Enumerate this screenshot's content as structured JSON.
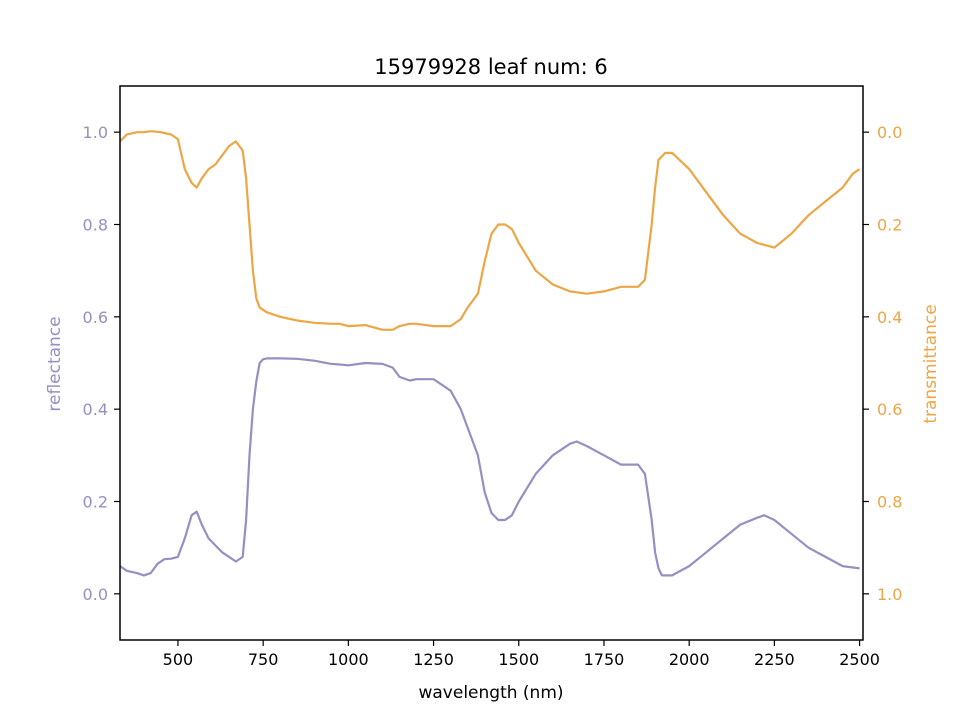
{
  "chart_data": {
    "type": "line",
    "title": "15979928 leaf num: 6",
    "xlabel": "wavelength (nm)",
    "ylabel_left": "reflectance",
    "ylabel_right": "transmittance",
    "xlim": [
      330,
      2510
    ],
    "ylim_left": [
      -0.1,
      1.1
    ],
    "ylim_right": [
      1.1,
      -0.1
    ],
    "right_axis_inverted": true,
    "xticks": [
      500,
      750,
      1000,
      1250,
      1500,
      1750,
      2000,
      2250,
      2500
    ],
    "xtick_labels": [
      "500",
      "750",
      "1000",
      "1250",
      "1500",
      "1750",
      "2000",
      "2250",
      "2500"
    ],
    "yticks_left": [
      0.0,
      0.2,
      0.4,
      0.6,
      0.8,
      1.0
    ],
    "ytick_labels_left": [
      "0.0",
      "0.2",
      "0.4",
      "0.6",
      "0.8",
      "1.0"
    ],
    "yticks_right": [
      0.0,
      0.2,
      0.4,
      0.6,
      0.8,
      1.0
    ],
    "ytick_labels_right": [
      "0.0",
      "0.2",
      "0.4",
      "0.6",
      "0.8",
      "1.0"
    ],
    "grid": false,
    "colors": {
      "reflectance": "#968fc2",
      "transmittance": "#eda645"
    },
    "series": [
      {
        "axis": "left",
        "color": "#968fc2",
        "x": [
          330,
          350,
          380,
          400,
          420,
          440,
          460,
          480,
          500,
          520,
          540,
          555,
          570,
          590,
          610,
          630,
          650,
          670,
          690,
          700,
          710,
          720,
          730,
          740,
          750,
          760,
          780,
          800,
          850,
          900,
          950,
          970,
          1000,
          1050,
          1100,
          1130,
          1150,
          1180,
          1200,
          1250,
          1300,
          1330,
          1350,
          1380,
          1400,
          1420,
          1440,
          1460,
          1480,
          1500,
          1550,
          1600,
          1650,
          1670,
          1700,
          1750,
          1800,
          1850,
          1870,
          1890,
          1900,
          1910,
          1920,
          1950,
          2000,
          2050,
          2100,
          2150,
          2200,
          2220,
          2250,
          2300,
          2350,
          2400,
          2450,
          2500
        ],
        "y": [
          0.06,
          0.05,
          0.045,
          0.04,
          0.045,
          0.065,
          0.075,
          0.076,
          0.08,
          0.12,
          0.17,
          0.178,
          0.15,
          0.12,
          0.105,
          0.09,
          0.08,
          0.07,
          0.08,
          0.16,
          0.3,
          0.4,
          0.46,
          0.5,
          0.508,
          0.51,
          0.51,
          0.51,
          0.509,
          0.505,
          0.498,
          0.497,
          0.495,
          0.5,
          0.498,
          0.49,
          0.47,
          0.462,
          0.465,
          0.465,
          0.44,
          0.4,
          0.36,
          0.3,
          0.22,
          0.175,
          0.16,
          0.16,
          0.17,
          0.2,
          0.26,
          0.3,
          0.325,
          0.33,
          0.32,
          0.3,
          0.28,
          0.28,
          0.26,
          0.16,
          0.09,
          0.055,
          0.04,
          0.04,
          0.06,
          0.09,
          0.12,
          0.15,
          0.165,
          0.17,
          0.16,
          0.13,
          0.1,
          0.08,
          0.06,
          0.055
        ]
      },
      {
        "axis": "right",
        "color": "#eda645",
        "x": [
          330,
          350,
          380,
          400,
          420,
          450,
          480,
          500,
          520,
          540,
          555,
          570,
          590,
          610,
          630,
          650,
          670,
          690,
          700,
          710,
          720,
          730,
          740,
          760,
          800,
          850,
          900,
          950,
          975,
          1000,
          1050,
          1100,
          1130,
          1150,
          1180,
          1200,
          1250,
          1300,
          1330,
          1350,
          1380,
          1400,
          1420,
          1440,
          1460,
          1480,
          1500,
          1550,
          1600,
          1650,
          1700,
          1750,
          1800,
          1850,
          1870,
          1890,
          1900,
          1910,
          1930,
          1950,
          2000,
          2050,
          2100,
          2150,
          2200,
          2250,
          2300,
          2350,
          2400,
          2450,
          2480,
          2500
        ],
        "y": [
          0.02,
          0.005,
          0.0,
          0.0,
          -0.002,
          0.0,
          0.005,
          0.015,
          0.08,
          0.11,
          0.12,
          0.1,
          0.08,
          0.07,
          0.05,
          0.03,
          0.02,
          0.04,
          0.1,
          0.2,
          0.3,
          0.36,
          0.38,
          0.39,
          0.4,
          0.408,
          0.413,
          0.415,
          0.415,
          0.42,
          0.418,
          0.428,
          0.428,
          0.42,
          0.415,
          0.415,
          0.42,
          0.42,
          0.405,
          0.38,
          0.35,
          0.28,
          0.22,
          0.2,
          0.2,
          0.21,
          0.24,
          0.3,
          0.33,
          0.345,
          0.35,
          0.345,
          0.335,
          0.335,
          0.32,
          0.2,
          0.12,
          0.06,
          0.045,
          0.045,
          0.08,
          0.13,
          0.18,
          0.22,
          0.24,
          0.25,
          0.22,
          0.18,
          0.15,
          0.12,
          0.09,
          0.08
        ]
      }
    ]
  }
}
